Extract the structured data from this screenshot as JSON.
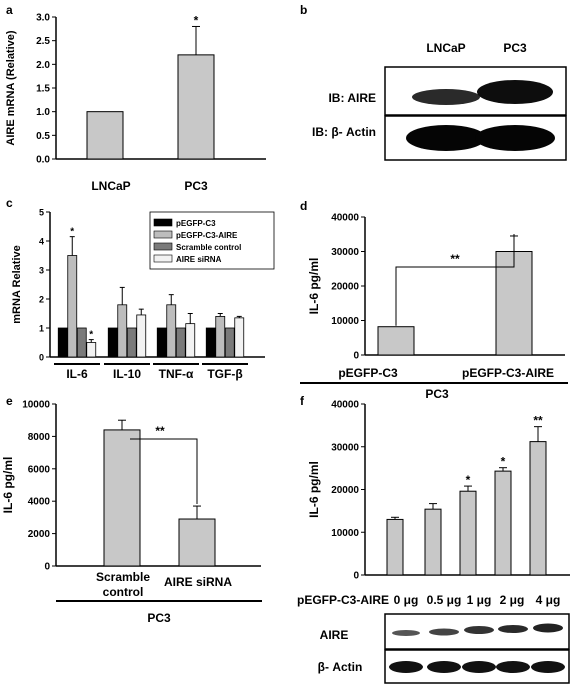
{
  "chart_data": [
    {
      "panel": "a",
      "type": "bar",
      "categories": [
        "LNCaP",
        "PC3"
      ],
      "values": [
        1.0,
        2.2
      ],
      "errors": [
        0,
        0.6
      ],
      "significance": [
        "",
        "*"
      ],
      "ylabel": "AIRE mRNA  (Relative)",
      "ylim": [
        0,
        3.0
      ],
      "yticks": [
        "0.0",
        "0.5",
        "1.0",
        "1.5",
        "2.0",
        "2.5",
        "3.0"
      ],
      "ytick_values": [
        0,
        0.5,
        1.0,
        1.5,
        2.0,
        2.5,
        3.0
      ]
    },
    {
      "panel": "c",
      "type": "bar",
      "categories": [
        "IL-6",
        "IL-10",
        "TNF-α",
        "TGF-β"
      ],
      "series": [
        {
          "name": "pEGFP-C3",
          "values": [
            1,
            1,
            1,
            1
          ],
          "errors": [
            0,
            0,
            0,
            0
          ],
          "color": "#000000"
        },
        {
          "name": "pEGFP-C3-AIRE",
          "values": [
            3.5,
            1.8,
            1.8,
            1.4
          ],
          "errors": [
            0.65,
            0.6,
            0.35,
            0.1
          ],
          "color": "#bdbdbd"
        },
        {
          "name": "Scramble control",
          "values": [
            1,
            1,
            1,
            1
          ],
          "errors": [
            0,
            0,
            0,
            0
          ],
          "color": "#7a7a7a"
        },
        {
          "name": "AIRE siRNA",
          "values": [
            0.5,
            1.45,
            1.15,
            1.35
          ],
          "errors": [
            0.1,
            0.2,
            0.35,
            0.05
          ],
          "color": "#f2f2f2"
        }
      ],
      "significance": [
        [
          "",
          "*",
          "",
          "*"
        ],
        [
          "",
          "",
          "",
          ""
        ],
        [
          "",
          "",
          "",
          ""
        ],
        [
          "",
          "",
          "",
          ""
        ]
      ],
      "ylabel": "mRNA  Relative",
      "ylim": [
        0,
        5
      ],
      "yticks": [
        "0",
        "1",
        "2",
        "3",
        "4",
        "5"
      ],
      "ytick_values": [
        0,
        1,
        2,
        3,
        4,
        5
      ]
    },
    {
      "panel": "d",
      "type": "bar",
      "categories": [
        "pEGFP-C3",
        "pEGFP-C3-AIRE"
      ],
      "values": [
        8200,
        30000
      ],
      "errors": [
        0,
        4500
      ],
      "bracket": "**",
      "ylabel": "IL-6 pg/ml",
      "xlabel": "PC3",
      "ylim": [
        0,
        40000
      ],
      "yticks": [
        "0",
        "10000",
        "20000",
        "30000",
        "40000"
      ],
      "ytick_values": [
        0,
        10000,
        20000,
        30000,
        40000
      ]
    },
    {
      "panel": "e",
      "type": "bar",
      "categories": [
        "Scramble control",
        "AIRE siRNA"
      ],
      "values": [
        8400,
        2900
      ],
      "errors": [
        600,
        800
      ],
      "bracket": "**",
      "ylabel": "IL-6 pg/ml",
      "xlabel": "PC3",
      "ylim": [
        0,
        10000
      ],
      "yticks": [
        "0",
        "2000",
        "4000",
        "6000",
        "8000",
        "10000"
      ],
      "ytick_values": [
        0,
        2000,
        4000,
        6000,
        8000,
        10000
      ]
    },
    {
      "panel": "f",
      "type": "bar",
      "categories": [
        "0 μg",
        "0.5 μg",
        "1 μg",
        "2 μg",
        "4 μg"
      ],
      "values": [
        13000,
        15400,
        19600,
        24300,
        31200
      ],
      "errors": [
        500,
        1300,
        1200,
        800,
        3500
      ],
      "significance": [
        "",
        "",
        "*",
        "*",
        "**"
      ],
      "ylabel": "IL-6 pg/ml",
      "ylim": [
        0,
        40000
      ],
      "yticks": [
        "0",
        "10000",
        "20000",
        "30000",
        "40000"
      ],
      "ytick_values": [
        0,
        10000,
        20000,
        30000,
        40000
      ]
    }
  ],
  "panel_labels": {
    "a": "a",
    "b": "b",
    "c": "c",
    "d": "d",
    "e": "e",
    "f": "f"
  },
  "panel_a": {
    "xticks": [
      "LNCaP",
      "PC3"
    ]
  },
  "panel_b": {
    "lanes": [
      "LNCaP",
      "PC3"
    ],
    "blots": [
      "IB: AIRE",
      "IB: β- Actin"
    ]
  },
  "panel_c": {
    "legend": [
      "pEGFP-C3",
      "pEGFP-C3-AIRE",
      "Scramble control",
      "AIRE siRNA"
    ],
    "groups": [
      "IL-6",
      "IL-10",
      "TNF-α",
      "TGF-β"
    ]
  },
  "panel_d": {
    "xticks": [
      "pEGFP-C3",
      "pEGFP-C3-AIRE"
    ],
    "group": "PC3",
    "sig": "**"
  },
  "panel_e": {
    "xticks_line1": [
      "Scramble",
      "AIRE siRNA"
    ],
    "xticks_line2": [
      "control",
      ""
    ],
    "group": "PC3",
    "sig": "**"
  },
  "panel_f": {
    "row_label": "pEGFP-C3-AIRE",
    "doses": [
      "0 μg",
      "0.5 μg",
      "1 μg",
      "2 μg",
      "4 μg"
    ],
    "blots": [
      "AIRE",
      "β- Actin"
    ]
  },
  "colors": {
    "bar": "#c8c8c8",
    "axis": "#000000"
  }
}
